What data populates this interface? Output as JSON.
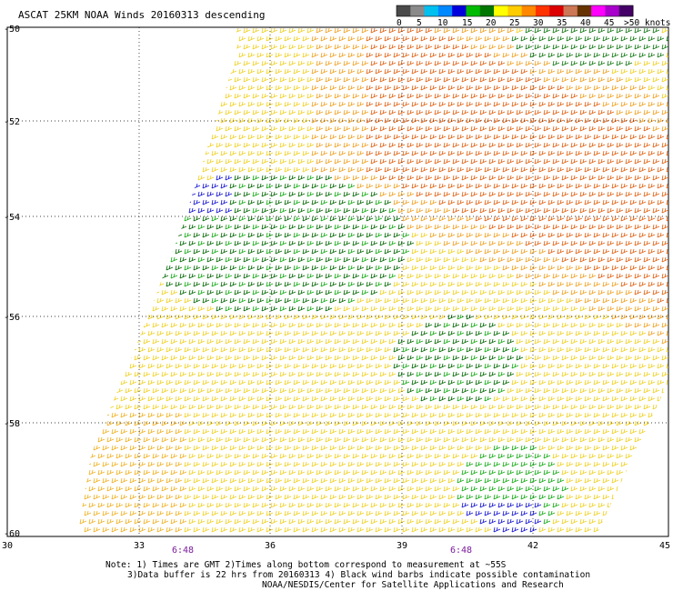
{
  "title": "ASCAT 25KM NOAA Winds 20160313 descending",
  "color_scale": {
    "colors": [
      "#4a4a4a",
      "#8a8a8a",
      "#00c0f0",
      "#0088ff",
      "#0000dd",
      "#00bb00",
      "#007700",
      "#ffff00",
      "#ffcc00",
      "#ff8800",
      "#ff3300",
      "#dd0000",
      "#cc7755",
      "#663300",
      "#ff00ff",
      "#aa00cc",
      "#440066"
    ],
    "labels": [
      "0",
      "5",
      "10",
      "15",
      "20",
      "25",
      "30",
      "35",
      "40",
      "45",
      ">50 knots"
    ]
  },
  "axes": {
    "lat_labels": [
      "-50",
      "-52",
      "-54",
      "-56",
      "-58",
      "-60"
    ],
    "lon_labels": [
      "30",
      "33",
      "36",
      "39",
      "42",
      "45"
    ],
    "time_labels": [
      "6:48",
      "6:48"
    ]
  },
  "notes": {
    "line1": "Note: 1) Times are GMT 2)Times along bottom correspond to measurement at ~55S",
    "line2": "3)Data buffer is 22 hrs from 20160313 4) Black wind barbs indicate possible contamination",
    "line3": "NOAA/NESDIS/Center for Satellite Applications and Research"
  }
}
